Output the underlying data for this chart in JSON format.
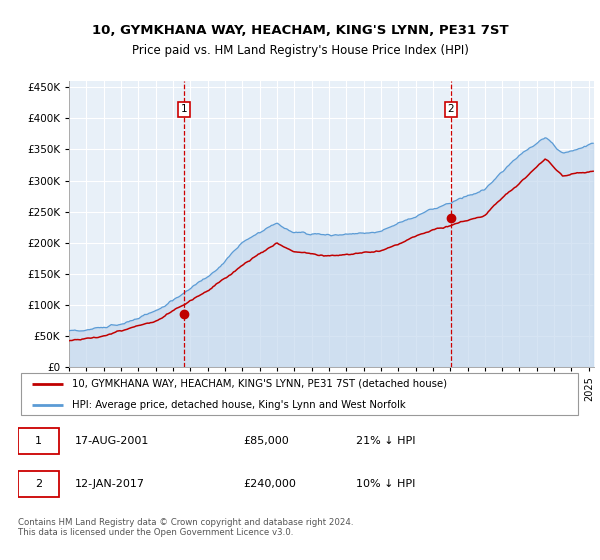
{
  "title": "10, GYMKHANA WAY, HEACHAM, KING'S LYNN, PE31 7ST",
  "subtitle": "Price paid vs. HM Land Registry's House Price Index (HPI)",
  "legend_line1": "10, GYMKHANA WAY, HEACHAM, KING'S LYNN, PE31 7ST (detached house)",
  "legend_line2": "HPI: Average price, detached house, King's Lynn and West Norfolk",
  "annotation1_date": "17-AUG-2001",
  "annotation1_price": "£85,000",
  "annotation1_hpi": "21% ↓ HPI",
  "annotation2_date": "12-JAN-2017",
  "annotation2_price": "£240,000",
  "annotation2_hpi": "10% ↓ HPI",
  "footer": "Contains HM Land Registry data © Crown copyright and database right 2024.\nThis data is licensed under the Open Government Licence v3.0.",
  "hpi_color": "#5b9bd5",
  "hpi_fill_color": "#c5d9ee",
  "price_color": "#c00000",
  "dashed_color": "#cc0000",
  "plot_bg": "#e8f0f8",
  "ylim": [
    0,
    460000
  ],
  "yticks": [
    0,
    50000,
    100000,
    150000,
    200000,
    250000,
    300000,
    350000,
    400000,
    450000
  ],
  "sale1_x": 2001.63,
  "sale1_y": 85000,
  "sale2_x": 2017.04,
  "sale2_y": 240000,
  "xmin": 1995,
  "xmax": 2025.3
}
